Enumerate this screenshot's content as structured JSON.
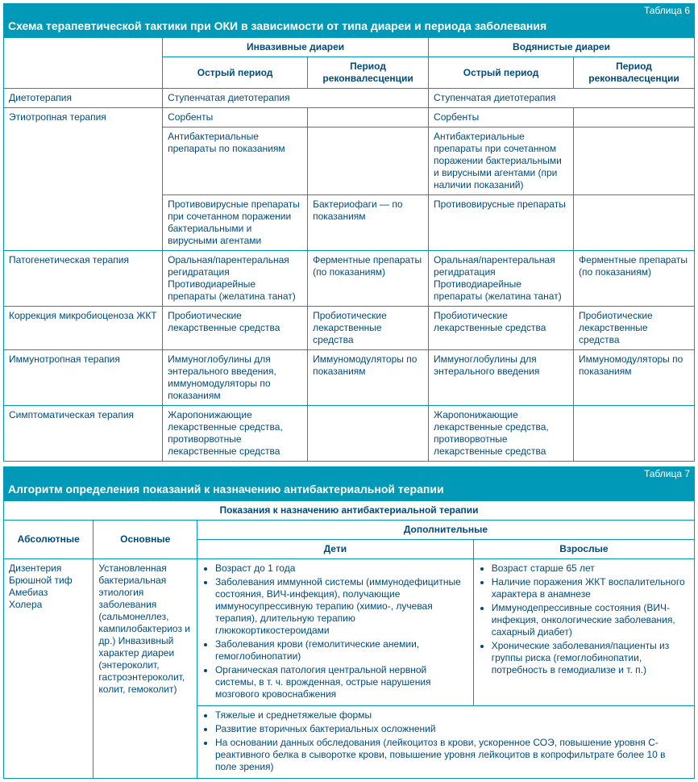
{
  "colors": {
    "header_bg": "#0099b8",
    "header_text": "#ffffff",
    "border": "#0099b8",
    "cell_text": "#004b7a",
    "cell_bg": "#ffffff"
  },
  "table6": {
    "label": "Таблица 6",
    "title": "Схема терапевтической тактики при ОКИ в зависимости от типа диареи и периода заболевания",
    "col_widths_percent": [
      23,
      21,
      17.5,
      21,
      17.5
    ],
    "header_group1": "Инвазивные диареи",
    "header_group2": "Водянистые диареи",
    "sub_acute": "Острый период",
    "sub_reconv": "Период реконвалесценции",
    "rows": {
      "diet_label": "Диетотерапия",
      "diet_val": "Ступенчатая диетотерапия",
      "etio_label": "Этиотропная терапия",
      "etio_r1_c1": "Сорбенты",
      "etio_r1_c3": "Сорбенты",
      "etio_r2_c1": "Антибактериальные препараты по показаниям",
      "etio_r2_c3": "Антибактериальные препараты при сочетанном поражении бактериальными и вирусными агентами (при наличии показаний)",
      "etio_r3_c1": "Противовирусные препараты при сочетанном поражении бактериальными и вирусными агентами",
      "etio_r3_c2": "Бактериофаги — по показаниям",
      "etio_r3_c3": "Противовирусные препараты",
      "pathogen_label": "Патогенетическая терапия",
      "pathogen_c1": "Оральная/парентеральная регидратация Противодиарейные препараты (желатина танат)",
      "pathogen_c2": "Ферментные препараты (по показаниям)",
      "pathogen_c3": "Оральная/парентеральная регидратация Противодиарейные препараты (желатина танат)",
      "pathogen_c4": "Ферментные препараты (по показаниям)",
      "microbio_label": "Коррекция микробиоценоза ЖКТ",
      "microbio_val": "Пробиотические лекарственные средства",
      "immuno_label": "Иммунотропная терапия",
      "immuno_c1": "Иммуноглобулины для энтерального введения, иммуномодуляторы по показаниям",
      "immuno_c2": "Иммуномодуляторы по показаниям",
      "immuno_c3": "Иммуноглобулины для энтерального введения",
      "immuno_c4": "Иммуномодуляторы по показаниям",
      "sympt_label": "Симптоматическая терапия",
      "sympt_c1": "Жаропонижающие лекарственные средства, противорвотные лекарственные средства",
      "sympt_c3": "Жаропонижающие лекарственные средства, противорвотные лекарственные средства"
    }
  },
  "table7": {
    "label": "Таблица 7",
    "title": "Алгоритм определения показаний к назначению антибактериальной терапии",
    "header_main": "Показания к назначению антибактериальной терапии",
    "col_widths_percent": [
      13,
      15,
      40,
      32
    ],
    "h_abs": "Абсолютные",
    "h_main": "Основные",
    "h_add": "Дополнительные",
    "h_children": "Дети",
    "h_adults": "Взрослые",
    "abs_lines": [
      "Дизентерия",
      "Брюшной тиф",
      "Амебиаз",
      "Холера"
    ],
    "main_text": "Установленная бактериальная этиология заболевания (сальмонеллез, кампилобактериоз и др.) Инвазивный характер диареи (энтероколит, гастроэнтероколит, колит, гемоколит)",
    "children_bullets": [
      "Возраст до 1 года",
      "Заболевания иммунной системы (иммунодефицитные состояния, ВИЧ-инфекция), получающие иммуносупрессивную терапию (химио-, лучевая терапия), длительную терапию глюкокортикостероидами",
      "Заболевания крови (гемолитические анемии, гемоглобинопатии)",
      "Органическая патология центральной нервной системы, в т. ч. врожденная, острые нарушения мозгового кровоснабжения"
    ],
    "adults_bullets": [
      "Возраст старше 65 лет",
      "Наличие поражения ЖКТ воспалительного характера в анамнезе",
      "Иммунодепрессивные состояния (ВИЧ-инфекция, онкологические заболевания, сахарный диабет)",
      "Хронические заболевания/пациенты из группы риска (гемоглобинопатии, потребность в гемодиализе и т. п.)"
    ],
    "bottom_bullets": [
      "Тяжелые и среднетяжелые формы",
      "Развитие вторичных бактериальных осложнений",
      "На основании данных обследования (лейкоцитоз в крови, ускоренное СОЭ, повышение уровня С-реактивного белка в сыворотке крови, повышение уровня лейкоцитов в копрофильтрате более 10 в поле зрения)"
    ]
  }
}
